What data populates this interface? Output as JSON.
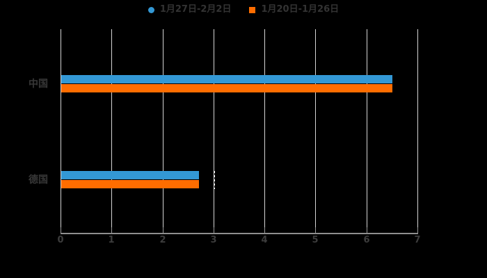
{
  "page": {
    "background": "#000000"
  },
  "legend": {
    "position": "top",
    "items": [
      {
        "label": "1月27日-2月2日",
        "marker": "circle",
        "color": "#3398d5"
      },
      {
        "label": "1月20日-1月26日",
        "marker": "square",
        "color": "#ff6d00"
      }
    ]
  },
  "chart_data": {
    "type": "bar",
    "orientation": "horizontal",
    "title": "",
    "xlabel": "",
    "ylabel": "",
    "categories": [
      "中国",
      "德国"
    ],
    "series": [
      {
        "name": "1月27日-2月2日",
        "color": "#3398d5",
        "values": [
          6.5,
          2.7
        ]
      },
      {
        "name": "1月20日-1月26日",
        "color": "#ff6d00",
        "values": [
          6.5,
          2.7
        ]
      }
    ],
    "xlim": [
      0,
      7
    ],
    "xticks": [
      0,
      1,
      2,
      3,
      4,
      5,
      6,
      7
    ],
    "grid": true,
    "gridline_color": "#d6d6d6",
    "axis_color": "#8f8f8f",
    "legend_position": "top",
    "annotations": [
      {
        "type": "dashed-line",
        "x": 3.0,
        "category": "德国",
        "color": "#ededed"
      }
    ]
  }
}
